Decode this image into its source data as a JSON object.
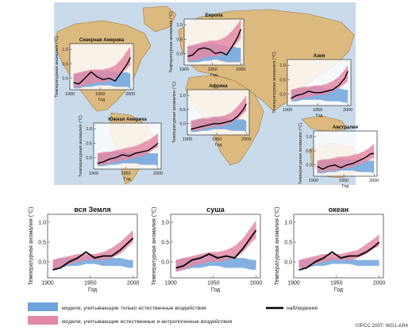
{
  "colors": {
    "natural": "#6fa3dc",
    "combined": "#e48aa6",
    "observed": "#000000",
    "land": "#dcb97e",
    "ocean": "#c9daea",
    "frame": "#4a4a4a"
  },
  "legend": {
    "natural": "модели, учитывающие только естественные воздействия",
    "combined": "модели, учитывающие естественные и антропогенные воздействия",
    "observed": "наблюдения"
  },
  "credit": "©IPCC 2007: WG1-AR4",
  "chart_data": [
    {
      "type": "line",
      "title": "Северная Америка",
      "ylabel": "Температурная аномалия (°C)",
      "xlabel": "Год",
      "xticks": [
        "1900",
        "1950",
        "2000"
      ],
      "yticks": [
        "0.0",
        "0.5",
        "1.0"
      ],
      "xlim": [
        1900,
        2005
      ],
      "ylim": [
        -0.4,
        1.2
      ],
      "x": [
        1906,
        1915,
        1925,
        1935,
        1945,
        1955,
        1965,
        1975,
        1985,
        1995,
        2000
      ],
      "observed": [
        -0.15,
        -0.2,
        0.0,
        0.22,
        0.05,
        -0.05,
        0.0,
        -0.1,
        0.2,
        0.5,
        0.72
      ],
      "natural_band": {
        "low": [
          -0.35,
          -0.35,
          -0.3,
          -0.3,
          -0.25,
          -0.25,
          -0.25,
          -0.3,
          -0.3,
          -0.3,
          -0.35
        ],
        "high": [
          0.15,
          0.15,
          0.2,
          0.2,
          0.25,
          0.25,
          0.25,
          0.2,
          0.2,
          0.2,
          0.15
        ]
      },
      "combined_band": {
        "low": [
          -0.3,
          -0.3,
          -0.25,
          -0.2,
          -0.15,
          -0.15,
          -0.1,
          0.0,
          0.15,
          0.35,
          0.45
        ],
        "high": [
          0.15,
          0.2,
          0.25,
          0.3,
          0.3,
          0.3,
          0.35,
          0.45,
          0.65,
          0.95,
          1.1
        ]
      }
    },
    {
      "type": "line",
      "title": "Европа",
      "ylabel": "Температурная аномалия (°C)",
      "xlabel": "Год",
      "xticks": [
        "1900",
        "1950",
        "2000"
      ],
      "yticks": [
        "0.0",
        "0.5",
        "1.0"
      ],
      "xlim": [
        1900,
        2005
      ],
      "ylim": [
        -0.4,
        1.2
      ],
      "x": [
        1906,
        1915,
        1925,
        1935,
        1945,
        1955,
        1965,
        1975,
        1985,
        1995,
        2000
      ],
      "observed": [
        -0.1,
        -0.05,
        0.15,
        0.2,
        0.15,
        0.0,
        0.05,
        -0.05,
        0.25,
        0.6,
        0.85
      ],
      "natural_band": {
        "low": [
          -0.3,
          -0.3,
          -0.3,
          -0.25,
          -0.25,
          -0.2,
          -0.25,
          -0.3,
          -0.3,
          -0.3,
          -0.3
        ],
        "high": [
          0.25,
          0.25,
          0.3,
          0.3,
          0.35,
          0.35,
          0.3,
          0.25,
          0.25,
          0.2,
          0.2
        ]
      },
      "combined_band": {
        "low": [
          -0.25,
          -0.25,
          -0.2,
          -0.15,
          -0.1,
          -0.1,
          -0.05,
          0.05,
          0.2,
          0.4,
          0.55
        ],
        "high": [
          0.25,
          0.3,
          0.35,
          0.4,
          0.45,
          0.45,
          0.5,
          0.6,
          0.8,
          1.05,
          1.2
        ]
      }
    },
    {
      "type": "line",
      "title": "Азия",
      "ylabel": "Температурная аномалия (°C)",
      "xlabel": "Год",
      "xticks": [
        "1900",
        "1950",
        "2000"
      ],
      "yticks": [
        "0.0",
        "0.5",
        "1.0"
      ],
      "xlim": [
        1900,
        2005
      ],
      "ylim": [
        -0.4,
        1.2
      ],
      "x": [
        1906,
        1915,
        1925,
        1935,
        1945,
        1955,
        1965,
        1975,
        1985,
        1995,
        2000
      ],
      "observed": [
        -0.15,
        -0.05,
        0.0,
        0.1,
        0.05,
        0.05,
        0.1,
        0.15,
        0.3,
        0.55,
        0.8
      ],
      "natural_band": {
        "low": [
          -0.25,
          -0.25,
          -0.2,
          -0.2,
          -0.2,
          -0.2,
          -0.25,
          -0.25,
          -0.25,
          -0.3,
          -0.3
        ],
        "high": [
          0.15,
          0.15,
          0.2,
          0.2,
          0.25,
          0.25,
          0.2,
          0.2,
          0.2,
          0.15,
          0.15
        ]
      },
      "combined_band": {
        "low": [
          -0.2,
          -0.2,
          -0.15,
          -0.1,
          -0.05,
          -0.05,
          0.0,
          0.1,
          0.2,
          0.35,
          0.45
        ],
        "high": [
          0.15,
          0.2,
          0.25,
          0.25,
          0.3,
          0.3,
          0.35,
          0.45,
          0.6,
          0.85,
          1.0
        ]
      }
    },
    {
      "type": "line",
      "title": "Африка",
      "ylabel": "Температурная аномалия (°C)",
      "xlabel": "Год",
      "xticks": [
        "1900",
        "1950",
        "2000"
      ],
      "yticks": [
        "0.0",
        "0.5",
        "1.0"
      ],
      "xlim": [
        1900,
        2005
      ],
      "ylim": [
        -0.4,
        1.2
      ],
      "x": [
        1906,
        1915,
        1925,
        1935,
        1945,
        1955,
        1965,
        1975,
        1985,
        1995,
        2000
      ],
      "observed": [
        -0.2,
        -0.15,
        -0.1,
        -0.05,
        0.0,
        0.0,
        0.05,
        0.1,
        0.25,
        0.5,
        0.7
      ],
      "natural_band": {
        "low": [
          -0.3,
          -0.3,
          -0.25,
          -0.25,
          -0.2,
          -0.2,
          -0.2,
          -0.25,
          -0.25,
          -0.25,
          -0.3
        ],
        "high": [
          0.1,
          0.1,
          0.15,
          0.15,
          0.2,
          0.2,
          0.2,
          0.15,
          0.15,
          0.15,
          0.1
        ]
      },
      "combined_band": {
        "low": [
          -0.25,
          -0.25,
          -0.2,
          -0.15,
          -0.1,
          -0.1,
          -0.05,
          0.05,
          0.15,
          0.35,
          0.45
        ],
        "high": [
          0.1,
          0.15,
          0.2,
          0.2,
          0.25,
          0.25,
          0.3,
          0.4,
          0.6,
          0.85,
          1.0
        ]
      }
    },
    {
      "type": "line",
      "title": "Южная Америка",
      "ylabel": "Температурная аномалия (°C)",
      "xlabel": "Год",
      "xticks": [
        "1900",
        "1950",
        "2000"
      ],
      "yticks": [
        "0.0",
        "0.5",
        "1.0"
      ],
      "xlim": [
        1900,
        2005
      ],
      "ylim": [
        -0.4,
        1.2
      ],
      "x": [
        1906,
        1915,
        1925,
        1935,
        1945,
        1955,
        1965,
        1975,
        1985,
        1995,
        2000
      ],
      "observed": [
        -0.2,
        -0.15,
        -0.05,
        0.0,
        0.1,
        0.05,
        0.15,
        0.2,
        0.25,
        0.4,
        0.5
      ],
      "natural_band": {
        "low": [
          -0.3,
          -0.3,
          -0.25,
          -0.25,
          -0.2,
          -0.2,
          -0.2,
          -0.25,
          -0.25,
          -0.25,
          -0.3
        ],
        "high": [
          0.15,
          0.15,
          0.2,
          0.2,
          0.2,
          0.2,
          0.2,
          0.2,
          0.15,
          0.15,
          0.15
        ]
      },
      "combined_band": {
        "low": [
          -0.25,
          -0.25,
          -0.2,
          -0.15,
          -0.1,
          -0.05,
          0.0,
          0.05,
          0.15,
          0.3,
          0.35
        ],
        "high": [
          0.15,
          0.2,
          0.2,
          0.25,
          0.3,
          0.35,
          0.4,
          0.5,
          0.6,
          0.75,
          0.85
        ]
      }
    },
    {
      "type": "line",
      "title": "Австралия",
      "ylabel": "Температурная аномалия (°C)",
      "xlabel": "Год",
      "xticks": [
        "1900",
        "1950",
        "2000"
      ],
      "yticks": [
        "0.0",
        "0.5",
        "1.0"
      ],
      "xlim": [
        1900,
        2005
      ],
      "ylim": [
        -0.4,
        1.2
      ],
      "x": [
        1906,
        1915,
        1925,
        1935,
        1945,
        1955,
        1965,
        1975,
        1985,
        1995,
        2000
      ],
      "observed": [
        -0.05,
        -0.15,
        -0.05,
        0.0,
        -0.1,
        0.0,
        0.05,
        0.15,
        0.25,
        0.4,
        0.4
      ],
      "natural_band": {
        "low": [
          -0.3,
          -0.3,
          -0.25,
          -0.25,
          -0.2,
          -0.2,
          -0.2,
          -0.25,
          -0.25,
          -0.25,
          -0.3
        ],
        "high": [
          0.15,
          0.15,
          0.2,
          0.2,
          0.2,
          0.2,
          0.2,
          0.15,
          0.15,
          0.15,
          0.15
        ]
      },
      "combined_band": {
        "low": [
          -0.25,
          -0.25,
          -0.2,
          -0.2,
          -0.15,
          -0.1,
          -0.05,
          0.0,
          0.1,
          0.2,
          0.25
        ],
        "high": [
          0.15,
          0.2,
          0.2,
          0.25,
          0.3,
          0.3,
          0.35,
          0.4,
          0.5,
          0.65,
          0.75
        ]
      }
    },
    {
      "type": "line",
      "title": "вся Земля",
      "ylabel": "Температурная аномалия (°C)",
      "xlabel": "Год",
      "xticks": [
        "1900",
        "1950",
        "2000"
      ],
      "yticks": [
        "0.0",
        "0.5",
        "1.0"
      ],
      "xlim": [
        1900,
        2005
      ],
      "ylim": [
        -0.4,
        1.2
      ],
      "x": [
        1906,
        1915,
        1925,
        1935,
        1945,
        1955,
        1965,
        1975,
        1985,
        1995,
        2000
      ],
      "observed": [
        -0.2,
        -0.15,
        0.0,
        0.1,
        0.25,
        0.1,
        0.15,
        0.15,
        0.3,
        0.5,
        0.6
      ],
      "natural_band": {
        "low": [
          -0.2,
          -0.15,
          -0.1,
          -0.1,
          -0.05,
          -0.05,
          -0.1,
          -0.1,
          -0.1,
          -0.15,
          -0.15
        ],
        "high": [
          0.05,
          0.1,
          0.1,
          0.1,
          0.15,
          0.15,
          0.1,
          0.1,
          0.1,
          0.05,
          0.05
        ]
      },
      "combined_band": {
        "low": [
          -0.2,
          -0.15,
          -0.05,
          0.0,
          0.05,
          0.05,
          0.05,
          0.1,
          0.2,
          0.4,
          0.5
        ],
        "high": [
          0.05,
          0.1,
          0.15,
          0.2,
          0.2,
          0.2,
          0.25,
          0.35,
          0.5,
          0.7,
          0.8
        ]
      }
    },
    {
      "type": "line",
      "title": "суша",
      "ylabel": "Температурная аномалия (°C)",
      "xlabel": "Год",
      "xticks": [
        "1900",
        "1950",
        "2000"
      ],
      "yticks": [
        "0.0",
        "0.5",
        "1.0"
      ],
      "xlim": [
        1900,
        2005
      ],
      "ylim": [
        -0.4,
        1.2
      ],
      "x": [
        1906,
        1915,
        1925,
        1935,
        1945,
        1955,
        1965,
        1975,
        1985,
        1995,
        2000
      ],
      "observed": [
        -0.15,
        -0.1,
        0.05,
        0.1,
        0.2,
        0.1,
        0.15,
        0.1,
        0.35,
        0.65,
        0.8
      ],
      "natural_band": {
        "low": [
          -0.25,
          -0.2,
          -0.15,
          -0.15,
          -0.1,
          -0.1,
          -0.15,
          -0.15,
          -0.15,
          -0.2,
          -0.2
        ],
        "high": [
          0.05,
          0.1,
          0.1,
          0.15,
          0.15,
          0.15,
          0.1,
          0.1,
          0.1,
          0.05,
          0.05
        ]
      },
      "combined_band": {
        "low": [
          -0.25,
          -0.2,
          -0.1,
          -0.05,
          0.0,
          0.0,
          0.05,
          0.1,
          0.25,
          0.5,
          0.6
        ],
        "high": [
          0.05,
          0.1,
          0.15,
          0.2,
          0.25,
          0.25,
          0.3,
          0.4,
          0.6,
          0.9,
          1.05
        ]
      }
    },
    {
      "type": "line",
      "title": "океан",
      "ylabel": "Температурная аномалия (°C)",
      "xlabel": "Год",
      "xticks": [
        "1900",
        "1950",
        "2000"
      ],
      "yticks": [
        "0.0",
        "0.5",
        "1.0"
      ],
      "xlim": [
        1900,
        2005
      ],
      "ylim": [
        -0.4,
        1.2
      ],
      "x": [
        1906,
        1915,
        1925,
        1935,
        1945,
        1955,
        1965,
        1975,
        1985,
        1995,
        2000
      ],
      "observed": [
        -0.2,
        -0.15,
        0.0,
        0.1,
        0.25,
        0.1,
        0.15,
        0.15,
        0.25,
        0.4,
        0.5
      ],
      "natural_band": {
        "low": [
          -0.15,
          -0.15,
          -0.1,
          -0.1,
          -0.05,
          -0.05,
          -0.05,
          -0.1,
          -0.1,
          -0.1,
          -0.1
        ],
        "high": [
          0.05,
          0.05,
          0.1,
          0.1,
          0.1,
          0.1,
          0.1,
          0.05,
          0.05,
          0.05,
          0.05
        ]
      },
      "combined_band": {
        "low": [
          -0.15,
          -0.15,
          -0.05,
          0.0,
          0.05,
          0.05,
          0.05,
          0.1,
          0.2,
          0.35,
          0.4
        ],
        "high": [
          0.05,
          0.1,
          0.15,
          0.2,
          0.2,
          0.2,
          0.25,
          0.3,
          0.45,
          0.6,
          0.7
        ]
      }
    }
  ]
}
